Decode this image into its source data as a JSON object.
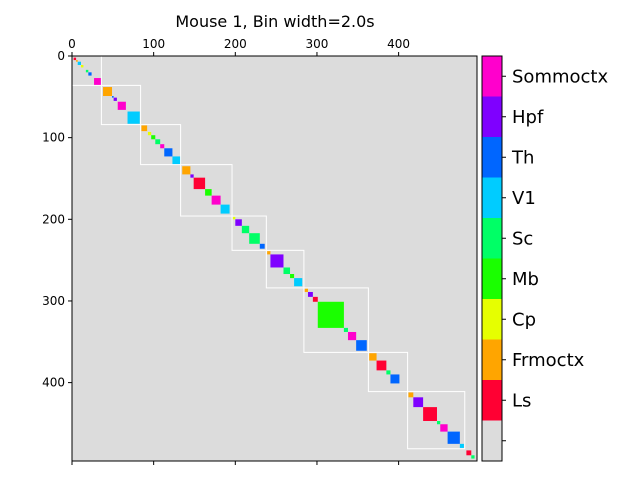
{
  "chart_data": {
    "type": "heatmap",
    "title": "Mouse 1, Bin width=2.0s",
    "xlabel": "",
    "ylabel": "",
    "xlim": [
      0,
      496
    ],
    "ylim": [
      496,
      0
    ],
    "xticks": [
      0,
      100,
      200,
      300,
      400
    ],
    "yticks": [
      0,
      100,
      200,
      300,
      400
    ],
    "background_color": "#dcdcdc",
    "group_outline_color": "#ffffff",
    "region_colors": {
      "Sommoctx": "#ff00cc",
      "Hpf": "#7f00ff",
      "Th": "#0066ff",
      "V1": "#00ccff",
      "Sc": "#00ff66",
      "Mb": "#1aff00",
      "Cp": "#e6ff00",
      "Frmoctx": "#ffa500",
      "Ls": "#ff0033"
    },
    "colorbar": {
      "labels": [
        "Sommoctx",
        "Hpf",
        "Th",
        "V1",
        "Sc",
        "Mb",
        "Cp",
        "Frmoctx",
        "Ls",
        ""
      ],
      "colors": [
        "#ff00cc",
        "#7f00ff",
        "#0066ff",
        "#00ccff",
        "#00ff66",
        "#1aff00",
        "#e6ff00",
        "#ffa500",
        "#ff0033",
        "#dcdcdc"
      ]
    },
    "groups": [
      [
        0,
        36
      ],
      [
        36,
        84
      ],
      [
        84,
        133
      ],
      [
        133,
        196
      ],
      [
        196,
        238
      ],
      [
        238,
        284
      ],
      [
        284,
        363
      ],
      [
        363,
        411
      ],
      [
        411,
        481
      ]
    ],
    "blocks": [
      {
        "start": 2,
        "size": 3,
        "region": "Ls"
      },
      {
        "start": 5,
        "size": 2,
        "region": "Frmoctx"
      },
      {
        "start": 7,
        "size": 4,
        "region": "V1"
      },
      {
        "start": 11,
        "size": 3,
        "region": "Cp"
      },
      {
        "start": 17,
        "size": 3,
        "region": "Sc"
      },
      {
        "start": 20,
        "size": 4,
        "region": "Th"
      },
      {
        "start": 27,
        "size": 9,
        "region": "Sommoctx"
      },
      {
        "start": 38,
        "size": 11,
        "region": "Frmoctx"
      },
      {
        "start": 49,
        "size": 2,
        "region": "Th"
      },
      {
        "start": 51,
        "size": 4,
        "region": "Hpf"
      },
      {
        "start": 56,
        "size": 10,
        "region": "Sommoctx"
      },
      {
        "start": 68,
        "size": 15,
        "region": "V1"
      },
      {
        "start": 85,
        "size": 7,
        "region": "Frmoctx"
      },
      {
        "start": 93,
        "size": 4,
        "region": "Cp"
      },
      {
        "start": 97,
        "size": 5,
        "region": "Mb"
      },
      {
        "start": 102,
        "size": 6,
        "region": "Sc"
      },
      {
        "start": 108,
        "size": 5,
        "region": "Sommoctx"
      },
      {
        "start": 113,
        "size": 10,
        "region": "Th"
      },
      {
        "start": 123,
        "size": 10,
        "region": "V1"
      },
      {
        "start": 135,
        "size": 10,
        "region": "Frmoctx"
      },
      {
        "start": 145,
        "size": 4,
        "region": "Hpf"
      },
      {
        "start": 149,
        "size": 14,
        "region": "Ls"
      },
      {
        "start": 163,
        "size": 8,
        "region": "Mb"
      },
      {
        "start": 171,
        "size": 11,
        "region": "Sommoctx"
      },
      {
        "start": 182,
        "size": 11,
        "region": "V1"
      },
      {
        "start": 197,
        "size": 3,
        "region": "Cp"
      },
      {
        "start": 200,
        "size": 8,
        "region": "Hpf"
      },
      {
        "start": 208,
        "size": 9,
        "region": "Sc"
      },
      {
        "start": 217,
        "size": 13,
        "region": "Sc"
      },
      {
        "start": 230,
        "size": 6,
        "region": "Th"
      },
      {
        "start": 239,
        "size": 4,
        "region": "Frmoctx"
      },
      {
        "start": 243,
        "size": 16,
        "region": "Hpf"
      },
      {
        "start": 259,
        "size": 8,
        "region": "Sc"
      },
      {
        "start": 267,
        "size": 5,
        "region": "Mb"
      },
      {
        "start": 272,
        "size": 10,
        "region": "V1"
      },
      {
        "start": 285,
        "size": 4,
        "region": "Frmoctx"
      },
      {
        "start": 289,
        "size": 6,
        "region": "Hpf"
      },
      {
        "start": 295,
        "size": 6,
        "region": "Ls"
      },
      {
        "start": 301,
        "size": 32,
        "region": "Mb"
      },
      {
        "start": 333,
        "size": 5,
        "region": "Sc"
      },
      {
        "start": 338,
        "size": 10,
        "region": "Sommoctx"
      },
      {
        "start": 348,
        "size": 13,
        "region": "Th"
      },
      {
        "start": 364,
        "size": 9,
        "region": "Frmoctx"
      },
      {
        "start": 373,
        "size": 12,
        "region": "Ls"
      },
      {
        "start": 385,
        "size": 5,
        "region": "Sc"
      },
      {
        "start": 390,
        "size": 11,
        "region": "Th"
      },
      {
        "start": 412,
        "size": 6,
        "region": "Frmoctx"
      },
      {
        "start": 418,
        "size": 12,
        "region": "Hpf"
      },
      {
        "start": 430,
        "size": 17,
        "region": "Ls"
      },
      {
        "start": 447,
        "size": 4,
        "region": "Sc"
      },
      {
        "start": 451,
        "size": 9,
        "region": "Sommoctx"
      },
      {
        "start": 460,
        "size": 15,
        "region": "Th"
      },
      {
        "start": 475,
        "size": 5,
        "region": "V1"
      },
      {
        "start": 483,
        "size": 6,
        "region": "Ls"
      },
      {
        "start": 489,
        "size": 4,
        "region": "Sc"
      }
    ]
  }
}
